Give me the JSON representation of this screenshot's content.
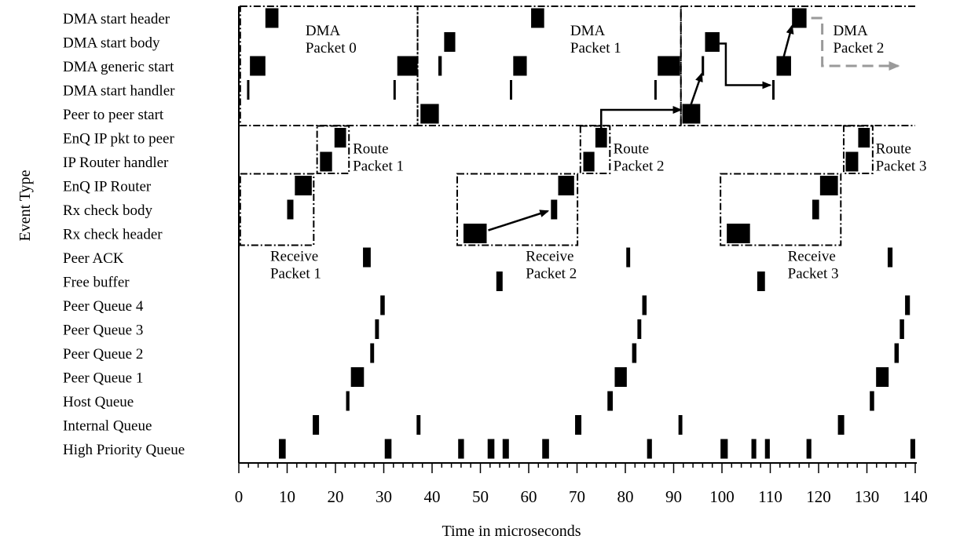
{
  "chart_data": {
    "type": "timeline",
    "title": "",
    "xlabel": "Time in microseconds",
    "ylabel": "Event Type",
    "xlim": [
      0,
      140
    ],
    "xticks": [
      0,
      10,
      20,
      30,
      40,
      50,
      60,
      70,
      80,
      90,
      100,
      110,
      120,
      130,
      140
    ],
    "categories": [
      "DMA start header",
      "DMA start body",
      "DMA generic start",
      "DMA start handler",
      "Peer to peer start",
      "EnQ IP pkt to peer",
      "IP Router handler",
      "EnQ IP Router",
      "Rx check body",
      "Rx check header",
      "Peer ACK",
      "Free buffer",
      "Peer Queue 4",
      "Peer Queue 3",
      "Peer Queue 2",
      "Peer Queue 1",
      "Host Queue",
      "Internal Queue",
      "High Priority Queue"
    ],
    "events": [
      {
        "category": "DMA start header",
        "start": 5.5,
        "end": 8.2
      },
      {
        "category": "DMA start header",
        "start": 60.5,
        "end": 63.2
      },
      {
        "category": "DMA start header",
        "start": 114.5,
        "end": 117.5
      },
      {
        "category": "DMA start body",
        "start": 42.5,
        "end": 44.8
      },
      {
        "category": "DMA start body",
        "start": 96.5,
        "end": 99.5
      },
      {
        "category": "DMA generic start",
        "start": 2.3,
        "end": 5.5
      },
      {
        "category": "DMA generic start",
        "start": 32.8,
        "end": 37.0
      },
      {
        "category": "DMA generic start",
        "start": 41.3,
        "end": 42.0
      },
      {
        "category": "DMA generic start",
        "start": 56.8,
        "end": 59.6
      },
      {
        "category": "DMA generic start",
        "start": 86.7,
        "end": 91.3
      },
      {
        "category": "DMA generic start",
        "start": 95.8,
        "end": 96.3
      },
      {
        "category": "DMA generic start",
        "start": 111.3,
        "end": 114.3
      },
      {
        "category": "DMA start handler",
        "start": 1.7,
        "end": 2.1
      },
      {
        "category": "DMA start handler",
        "start": 32.0,
        "end": 32.4
      },
      {
        "category": "DMA start handler",
        "start": 56.1,
        "end": 56.5
      },
      {
        "category": "DMA start handler",
        "start": 86.0,
        "end": 86.4
      },
      {
        "category": "DMA start handler",
        "start": 110.4,
        "end": 110.8
      },
      {
        "category": "Peer to peer start",
        "start": 37.6,
        "end": 41.4
      },
      {
        "category": "Peer to peer start",
        "start": 91.8,
        "end": 95.5
      },
      {
        "category": "EnQ IP pkt to peer",
        "start": 19.8,
        "end": 22.2
      },
      {
        "category": "EnQ IP pkt to peer",
        "start": 73.8,
        "end": 76.2
      },
      {
        "category": "EnQ IP pkt to peer",
        "start": 128.2,
        "end": 130.6
      },
      {
        "category": "IP Router handler",
        "start": 16.8,
        "end": 19.3
      },
      {
        "category": "IP Router handler",
        "start": 71.3,
        "end": 73.6
      },
      {
        "category": "IP Router handler",
        "start": 125.6,
        "end": 128.2
      },
      {
        "category": "EnQ IP Router",
        "start": 11.6,
        "end": 15.1
      },
      {
        "category": "EnQ IP Router",
        "start": 66.1,
        "end": 69.4
      },
      {
        "category": "EnQ IP Router",
        "start": 120.3,
        "end": 124.0
      },
      {
        "category": "Rx check body",
        "start": 10.0,
        "end": 11.3
      },
      {
        "category": "Rx check body",
        "start": 64.6,
        "end": 65.9
      },
      {
        "category": "Rx check body",
        "start": 118.7,
        "end": 120.1
      },
      {
        "category": "Rx check header",
        "start": 46.5,
        "end": 51.3
      },
      {
        "category": "Rx check header",
        "start": 101.0,
        "end": 105.8
      },
      {
        "category": "Peer ACK",
        "start": 25.7,
        "end": 27.3
      },
      {
        "category": "Peer ACK",
        "start": 80.2,
        "end": 81.0
      },
      {
        "category": "Peer ACK",
        "start": 134.3,
        "end": 135.3
      },
      {
        "category": "Free buffer",
        "start": 53.3,
        "end": 54.6
      },
      {
        "category": "Free buffer",
        "start": 107.3,
        "end": 108.9
      },
      {
        "category": "Peer Queue 4",
        "start": 29.3,
        "end": 30.2
      },
      {
        "category": "Peer Queue 4",
        "start": 83.5,
        "end": 84.4
      },
      {
        "category": "Peer Queue 4",
        "start": 137.9,
        "end": 138.9
      },
      {
        "category": "Peer Queue 3",
        "start": 28.2,
        "end": 29.0
      },
      {
        "category": "Peer Queue 3",
        "start": 82.5,
        "end": 83.3
      },
      {
        "category": "Peer Queue 3",
        "start": 136.8,
        "end": 137.7
      },
      {
        "category": "Peer Queue 2",
        "start": 27.2,
        "end": 28.0
      },
      {
        "category": "Peer Queue 2",
        "start": 81.4,
        "end": 82.3
      },
      {
        "category": "Peer Queue 2",
        "start": 135.7,
        "end": 136.6
      },
      {
        "category": "Peer Queue 1",
        "start": 23.2,
        "end": 25.9
      },
      {
        "category": "Peer Queue 1",
        "start": 77.8,
        "end": 80.3
      },
      {
        "category": "Peer Queue 1",
        "start": 131.9,
        "end": 134.5
      },
      {
        "category": "Host Queue",
        "start": 22.2,
        "end": 22.9
      },
      {
        "category": "Host Queue",
        "start": 76.3,
        "end": 77.4
      },
      {
        "category": "Host Queue",
        "start": 130.6,
        "end": 131.5
      },
      {
        "category": "Internal Queue",
        "start": 15.3,
        "end": 16.6
      },
      {
        "category": "Internal Queue",
        "start": 36.8,
        "end": 37.6
      },
      {
        "category": "Internal Queue",
        "start": 69.6,
        "end": 70.9
      },
      {
        "category": "Internal Queue",
        "start": 91.0,
        "end": 91.8
      },
      {
        "category": "Internal Queue",
        "start": 124.0,
        "end": 125.3
      },
      {
        "category": "High Priority Queue",
        "start": 8.3,
        "end": 9.7
      },
      {
        "category": "High Priority Queue",
        "start": 30.2,
        "end": 31.6
      },
      {
        "category": "High Priority Queue",
        "start": 45.4,
        "end": 46.6
      },
      {
        "category": "High Priority Queue",
        "start": 51.5,
        "end": 52.9
      },
      {
        "category": "High Priority Queue",
        "start": 54.6,
        "end": 55.9
      },
      {
        "category": "High Priority Queue",
        "start": 62.8,
        "end": 64.2
      },
      {
        "category": "High Priority Queue",
        "start": 84.5,
        "end": 85.5
      },
      {
        "category": "High Priority Queue",
        "start": 99.7,
        "end": 101.2
      },
      {
        "category": "High Priority Queue",
        "start": 106.1,
        "end": 107.1
      },
      {
        "category": "High Priority Queue",
        "start": 108.9,
        "end": 109.9
      },
      {
        "category": "High Priority Queue",
        "start": 117.5,
        "end": 118.5
      },
      {
        "category": "High Priority Queue",
        "start": 139.0,
        "end": 140.0
      }
    ],
    "regions": [
      {
        "label": "DMA\nPacket 0",
        "x0": 0.3,
        "x1": 37.0,
        "top": "DMA start header",
        "bottom": "Peer to peer start",
        "label_at": 13.8
      },
      {
        "label": "DMA\nPacket 1",
        "x0": 37.0,
        "x1": 91.5,
        "top": "DMA start header",
        "bottom": "Peer to peer start",
        "label_at": 68.6
      },
      {
        "label": "DMA\nPacket 2",
        "x0": 91.5,
        "x1": 140.0,
        "top": "DMA start header",
        "bottom": "Peer to peer start",
        "label_at": 123.0,
        "open": true
      },
      {
        "label": "Route\nPacket 1",
        "x0": 16.2,
        "x1": 22.8,
        "top": "EnQ IP pkt to peer",
        "bottom": "IP Router handler",
        "label_at": 23.6
      },
      {
        "label": "Route\nPacket 2",
        "x0": 70.7,
        "x1": 76.8,
        "top": "EnQ IP pkt to peer",
        "bottom": "IP Router handler",
        "label_at": 77.5
      },
      {
        "label": "Route\nPacket 3",
        "x0": 125.2,
        "x1": 131.2,
        "top": "EnQ IP pkt to peer",
        "bottom": "IP Router handler",
        "label_at": 131.8
      },
      {
        "label": "Receive\nPacket 1",
        "x0": 0.3,
        "x1": 15.5,
        "top": "EnQ IP Router",
        "bottom": "Rx check header",
        "label_at": 6.5
      },
      {
        "label": "Receive\nPacket 2",
        "x0": 45.2,
        "x1": 70.1,
        "top": "EnQ IP Router",
        "bottom": "Rx check header",
        "label_at": 59.4
      },
      {
        "label": "Receive\nPacket 3",
        "x0": 99.7,
        "x1": 124.6,
        "top": "EnQ IP Router",
        "bottom": "Rx check header",
        "label_at": 113.6
      }
    ],
    "arrows": [
      {
        "from": [
          51.3,
          "Rx check header"
        ],
        "to": [
          64.6,
          "Rx check body"
        ],
        "style": "straight"
      },
      {
        "from": [
          75.0,
          "EnQ IP pkt to peer"
        ],
        "to": [
          91.8,
          "Peer to peer start"
        ],
        "style": "elbow-up"
      },
      {
        "from": [
          93.6,
          "Peer to peer start"
        ],
        "to": [
          95.8,
          "DMA generic start"
        ],
        "style": "straight"
      },
      {
        "from": [
          99.5,
          "DMA start body"
        ],
        "to": [
          110.3,
          "DMA start handler"
        ],
        "style": "elbow-down"
      },
      {
        "from": [
          112.8,
          "DMA generic start"
        ],
        "to": [
          114.5,
          "DMA start header"
        ],
        "style": "straight"
      },
      {
        "from": [
          117.5,
          "DMA start header"
        ],
        "to": [
          136.5,
          "DMA generic start"
        ],
        "style": "dashed-gray"
      }
    ]
  }
}
